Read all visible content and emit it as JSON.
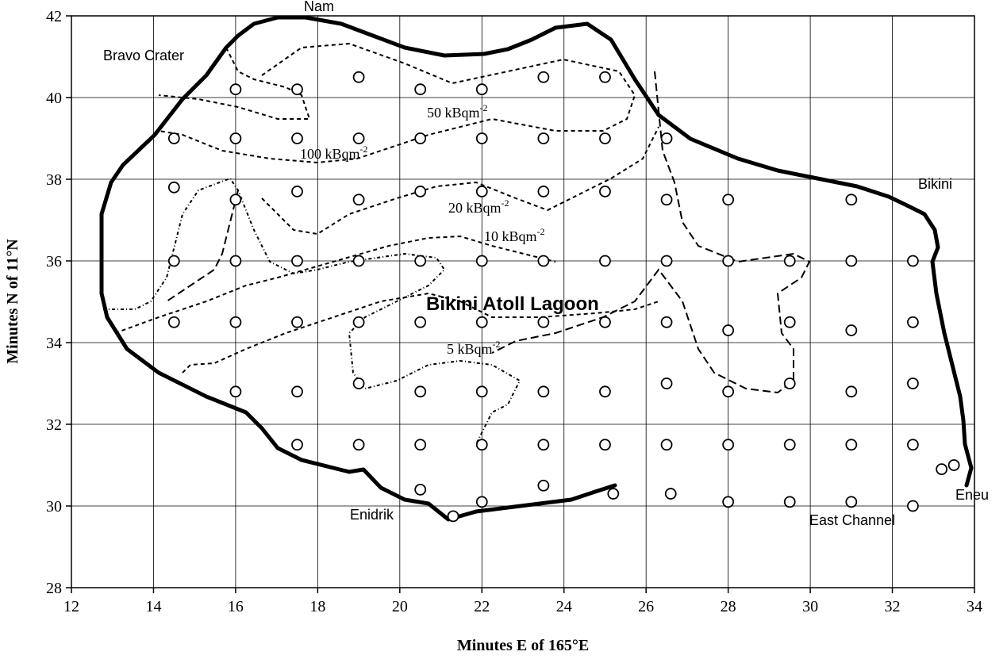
{
  "chart_data": {
    "type": "scatter",
    "x_label": "Minutes E  of 165°E",
    "y_label": "Minutes N of 11°N",
    "xlim": [
      12,
      34
    ],
    "xticks": [
      12,
      14,
      16,
      18,
      20,
      22,
      24,
      26,
      28,
      30,
      32,
      34
    ],
    "ylim": [
      28,
      42
    ],
    "yticks": [
      28,
      30,
      32,
      34,
      36,
      38,
      40,
      42
    ],
    "grid": true,
    "x": [
      16,
      17.5,
      19,
      20.5,
      22,
      23.5,
      25,
      14.5,
      16,
      17.5,
      19,
      20.5,
      22,
      23.5,
      25,
      26.5,
      14.5,
      16,
      17.5,
      19,
      20.5,
      22,
      23.5,
      25,
      26.5,
      28,
      31,
      14.5,
      16,
      17.5,
      19,
      20.5,
      22,
      23.5,
      25,
      26.5,
      28,
      29.5,
      31,
      32.5,
      14.5,
      16,
      17.5,
      19,
      20.5,
      22,
      23.5,
      25,
      26.5,
      28,
      29.5,
      31,
      32.5,
      16,
      17.5,
      19,
      20.5,
      22,
      23.5,
      25,
      26.5,
      28,
      29.5,
      31,
      32.5,
      17.5,
      19,
      20.5,
      22,
      23.5,
      25,
      26.5,
      28,
      29.5,
      31,
      32.5,
      20.5,
      22,
      23.5,
      25.2,
      26.6,
      28,
      29.5,
      31,
      32.5,
      21.3,
      33.2,
      33.5
    ],
    "values": [
      40.2,
      40.2,
      40.5,
      40.2,
      40.2,
      40.5,
      40.5,
      39,
      39,
      39,
      39,
      39,
      39,
      39,
      39,
      39,
      37.8,
      37.5,
      37.7,
      37.5,
      37.7,
      37.7,
      37.7,
      37.7,
      37.5,
      37.5,
      37.5,
      36,
      36,
      36,
      36,
      36,
      36,
      36,
      36,
      36,
      36,
      36,
      36,
      36,
      34.5,
      34.5,
      34.5,
      34.5,
      34.5,
      34.5,
      34.5,
      34.5,
      34.5,
      34.3,
      34.5,
      34.3,
      34.5,
      32.8,
      32.8,
      33,
      32.8,
      32.8,
      32.8,
      32.8,
      33,
      32.8,
      33,
      32.8,
      33,
      31.5,
      31.5,
      31.5,
      31.5,
      31.5,
      31.5,
      31.5,
      31.5,
      31.5,
      31.5,
      31.5,
      30.4,
      30.1,
      30.5,
      30.3,
      30.3,
      30.1,
      30.1,
      30.1,
      30,
      29.75,
      30.9,
      31
    ],
    "annotations": {
      "nam": "Nam",
      "bravo": "Bravo Crater",
      "bikini": "Bikini",
      "eneu": "Eneu",
      "east": "East  Channel",
      "enidrik": "Enidrik",
      "lagoon": "Bikini Atoll Lagoon",
      "c50": {
        "text": "50 kBqm",
        "sup": "-2"
      },
      "c100": {
        "text": "100 kBqm",
        "sup": "-2"
      },
      "c20": {
        "text": "20 kBqm",
        "sup": "-2"
      },
      "c10": {
        "text": "10 kBqm",
        "sup": "-2"
      },
      "c5": {
        "text": "5 kBqm",
        "sup": "-2"
      }
    }
  }
}
